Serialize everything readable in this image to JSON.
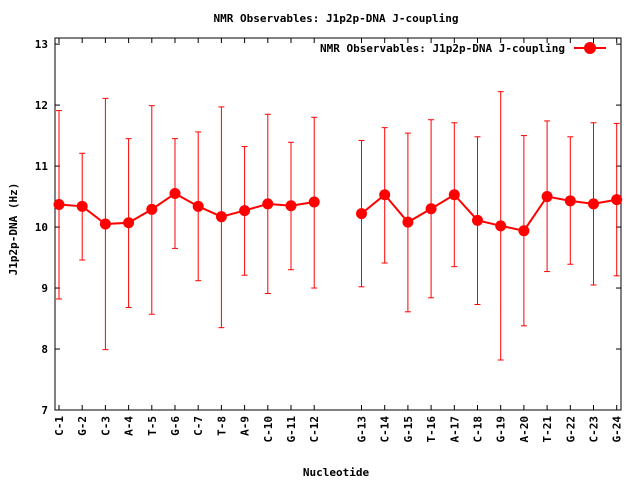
{
  "chart_data": {
    "type": "line",
    "title": "NMR Observables: J1p2p-DNA J-coupling",
    "xlabel": "Nucleotide",
    "ylabel": "J1p2p-DNA (Hz)",
    "ylim": [
      7,
      13.1
    ],
    "yticks": [
      7,
      8,
      9,
      10,
      11,
      12,
      13
    ],
    "legend_position": "top-right",
    "grid": false,
    "categories": [
      "C-1",
      "G-2",
      "C-3",
      "A-4",
      "T-5",
      "G-6",
      "C-7",
      "T-8",
      "A-9",
      "C-10",
      "G-11",
      "C-12",
      "G-13",
      "C-14",
      "G-15",
      "T-16",
      "A-17",
      "C-18",
      "G-19",
      "A-20",
      "T-21",
      "G-22",
      "C-23",
      "G-24"
    ],
    "series": [
      {
        "name": "NMR Observables: J1p2p-DNA J-coupling",
        "color": "#ff0000",
        "segments": [
          [
            0,
            11
          ],
          [
            12,
            23
          ]
        ],
        "values": [
          10.37,
          10.34,
          10.05,
          10.07,
          10.29,
          10.55,
          10.34,
          10.17,
          10.27,
          10.38,
          10.35,
          10.41,
          10.22,
          10.53,
          10.08,
          10.3,
          10.53,
          10.11,
          10.02,
          9.94,
          10.5,
          10.43,
          10.38,
          10.45
        ],
        "error_low": [
          8.82,
          9.46,
          7.99,
          8.68,
          8.57,
          9.65,
          9.12,
          8.35,
          9.21,
          8.91,
          9.3,
          9.0,
          9.02,
          9.41,
          8.61,
          8.84,
          9.35,
          8.73,
          7.82,
          8.38,
          9.27,
          9.39,
          9.05,
          9.2
        ],
        "error_high": [
          11.91,
          11.21,
          12.11,
          11.45,
          11.99,
          11.45,
          11.56,
          11.97,
          11.32,
          11.85,
          11.39,
          11.8,
          11.42,
          11.63,
          11.54,
          11.76,
          11.71,
          11.48,
          12.22,
          11.5,
          11.74,
          11.48,
          11.71,
          11.7
        ]
      }
    ]
  }
}
